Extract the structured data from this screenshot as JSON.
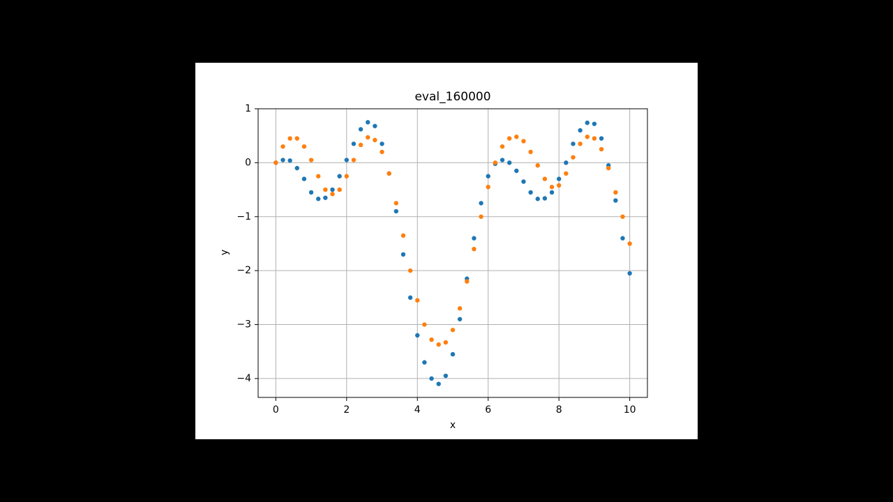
{
  "chart_data": {
    "type": "scatter",
    "title": "eval_160000",
    "x_label": "x",
    "y_label": "y",
    "x": [
      0,
      0.2,
      0.4,
      0.6,
      0.8,
      1.0,
      1.2,
      1.4,
      1.6,
      1.8,
      2.0,
      2.2,
      2.4,
      2.6,
      2.8,
      3.0,
      3.2,
      3.4,
      3.6,
      3.8,
      4.0,
      4.2,
      4.4,
      4.6,
      4.8,
      5.0,
      5.2,
      5.4,
      5.6,
      5.8,
      6.0,
      6.2,
      6.4,
      6.6,
      6.8,
      7.0,
      7.2,
      7.4,
      7.6,
      7.8,
      8.0,
      8.2,
      8.4,
      8.6,
      8.8,
      9.0,
      9.2,
      9.4,
      9.6,
      9.8,
      10.0
    ],
    "series": [
      {
        "color": "#1f77b4",
        "values": [
          0,
          0.05,
          0.04,
          -0.1,
          -0.3,
          -0.55,
          -0.67,
          -0.65,
          -0.5,
          -0.25,
          0.05,
          0.35,
          0.62,
          0.75,
          0.68,
          0.35,
          -0.2,
          -0.9,
          -1.7,
          -2.5,
          -3.2,
          -3.7,
          -4.0,
          -4.1,
          -3.95,
          -3.55,
          -2.9,
          -2.15,
          -1.4,
          -0.75,
          -0.25,
          -0.02,
          0.05,
          0.0,
          -0.15,
          -0.35,
          -0.55,
          -0.67,
          -0.66,
          -0.55,
          -0.3,
          0.0,
          0.35,
          0.6,
          0.74,
          0.72,
          0.45,
          -0.05,
          -0.7,
          -1.4,
          -2.05
        ]
      },
      {
        "color": "#ff7f0e",
        "values": [
          0,
          0.3,
          0.45,
          0.45,
          0.3,
          0.05,
          -0.25,
          -0.5,
          -0.58,
          -0.5,
          -0.25,
          0.05,
          0.33,
          0.47,
          0.42,
          0.2,
          -0.2,
          -0.75,
          -1.35,
          -2.0,
          -2.55,
          -3.0,
          -3.28,
          -3.37,
          -3.33,
          -3.1,
          -2.7,
          -2.2,
          -1.6,
          -1.0,
          -0.45,
          0.0,
          0.3,
          0.45,
          0.48,
          0.4,
          0.2,
          -0.05,
          -0.3,
          -0.45,
          -0.42,
          -0.2,
          0.1,
          0.35,
          0.48,
          0.45,
          0.25,
          -0.1,
          -0.55,
          -1.0,
          -1.5
        ]
      }
    ],
    "xlim": [
      -0.5,
      10.5
    ],
    "ylim": [
      -4.35,
      1
    ],
    "xticks": [
      0,
      2,
      4,
      6,
      8,
      10
    ],
    "yticks": [
      {
        "value": -4,
        "label": "−4"
      },
      {
        "value": -3,
        "label": "−3"
      },
      {
        "value": -2,
        "label": "−2"
      },
      {
        "value": -1,
        "label": "−1"
      },
      0,
      1
    ],
    "grid": true
  }
}
